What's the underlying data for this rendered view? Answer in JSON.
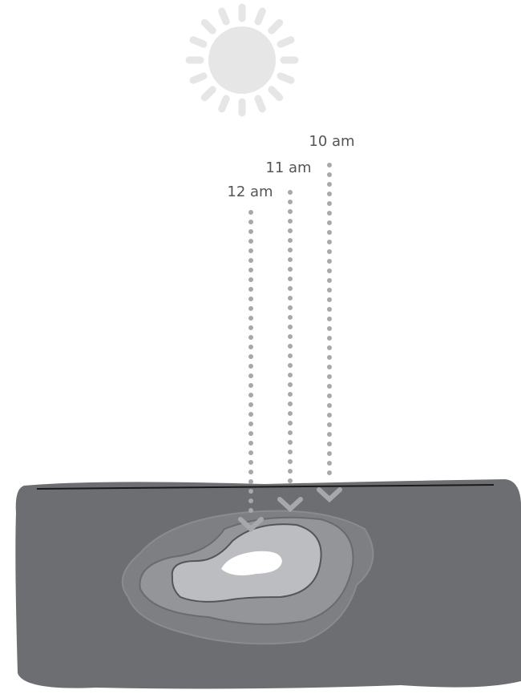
{
  "labels": [
    "10 am",
    "11 am",
    "12 am"
  ]
}
